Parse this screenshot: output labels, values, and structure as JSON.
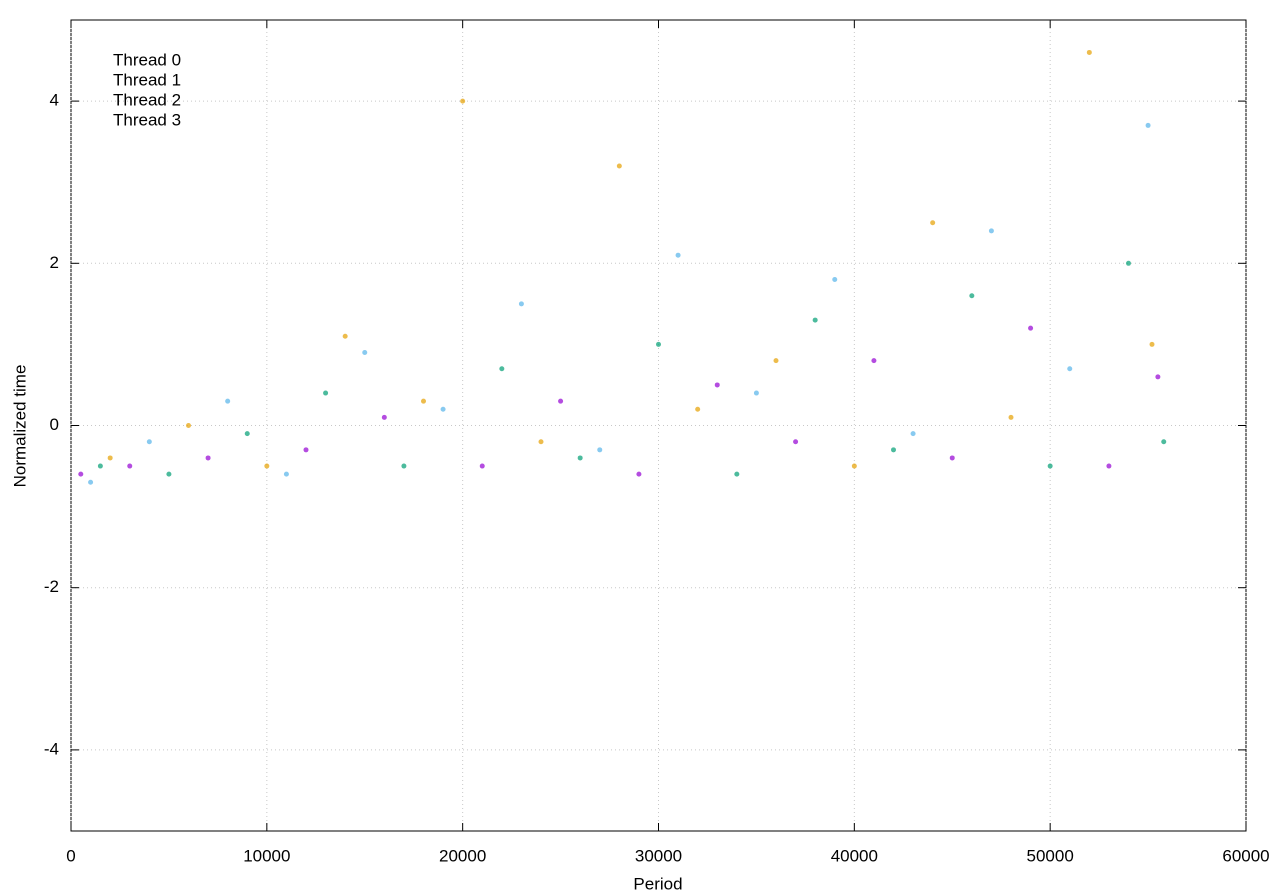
{
  "chart_data": {
    "type": "scatter",
    "x_label": "Period",
    "y_label": "Normalized time",
    "xlim": [
      0,
      60000
    ],
    "ylim": [
      -5,
      5
    ],
    "xticks": [
      0,
      10000,
      20000,
      30000,
      40000,
      50000,
      60000
    ],
    "yticks": [
      -4,
      -2,
      0,
      2,
      4
    ],
    "grid": true,
    "legend": "top-left",
    "series": [
      {
        "name": "Thread 0",
        "color": "#9400d3",
        "x": [
          500,
          3000,
          7000,
          12000,
          16000,
          21000,
          25000,
          29000,
          33000,
          37000,
          41000,
          45000,
          49000,
          53000,
          55500
        ],
        "values": [
          -0.6,
          -0.5,
          -0.4,
          -0.3,
          0.1,
          -0.5,
          0.3,
          -0.6,
          0.5,
          -0.2,
          0.8,
          -0.4,
          1.2,
          -0.5,
          0.6
        ]
      },
      {
        "name": "Thread 1",
        "color": "#56b4e9",
        "x": [
          1000,
          4000,
          8000,
          11000,
          15000,
          19000,
          23000,
          27000,
          31000,
          35000,
          39000,
          43000,
          47000,
          51000,
          55000
        ],
        "values": [
          -0.7,
          -0.2,
          0.3,
          -0.6,
          0.9,
          0.2,
          1.5,
          -0.3,
          2.1,
          0.4,
          1.8,
          -0.1,
          2.4,
          0.7,
          3.7
        ]
      },
      {
        "name": "Thread 2",
        "color": "#009e73",
        "x": [
          1500,
          5000,
          9000,
          13000,
          17000,
          22000,
          26000,
          30000,
          34000,
          38000,
          42000,
          46000,
          50000,
          54000,
          55800
        ],
        "values": [
          -0.5,
          -0.6,
          -0.1,
          0.4,
          -0.5,
          0.7,
          -0.4,
          1.0,
          -0.6,
          1.3,
          -0.3,
          1.6,
          -0.5,
          2.0,
          -0.2
        ]
      },
      {
        "name": "Thread 3",
        "color": "#e69f00",
        "x": [
          2000,
          6000,
          10000,
          14000,
          18000,
          20000,
          24000,
          28000,
          32000,
          36000,
          40000,
          44000,
          48000,
          52000,
          55200
        ],
        "values": [
          -0.4,
          0.0,
          -0.5,
          1.1,
          0.3,
          4.0,
          -0.2,
          3.2,
          0.2,
          0.8,
          -0.5,
          2.5,
          0.1,
          4.6,
          1.0
        ]
      }
    ]
  }
}
